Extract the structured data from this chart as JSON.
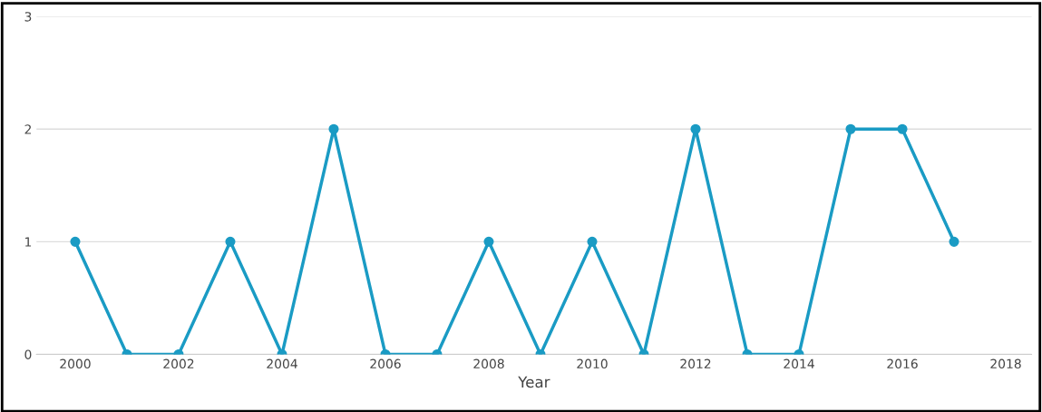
{
  "chart_data": {
    "type": "line",
    "xlabel": "Year",
    "x": [
      2000,
      2001,
      2002,
      2003,
      2004,
      2005,
      2006,
      2007,
      2008,
      2009,
      2010,
      2011,
      2012,
      2013,
      2014,
      2015,
      2016,
      2017
    ],
    "series": [
      {
        "color": "#1a9bc4",
        "values": [
          1,
          0,
          0,
          1,
          0,
          2,
          0,
          0,
          1,
          0,
          1,
          0,
          2,
          0,
          0,
          2,
          2,
          1
        ]
      }
    ],
    "xlim": [
      1999.25,
      2018.5
    ],
    "xticks": [
      2000,
      2002,
      2004,
      2006,
      2008,
      2010,
      2012,
      2014,
      2016,
      2018
    ],
    "ylim": [
      0,
      3
    ],
    "yticks": [
      0,
      1,
      2,
      3
    ],
    "grid": "y",
    "marker": "circle",
    "line_style": "solid"
  }
}
